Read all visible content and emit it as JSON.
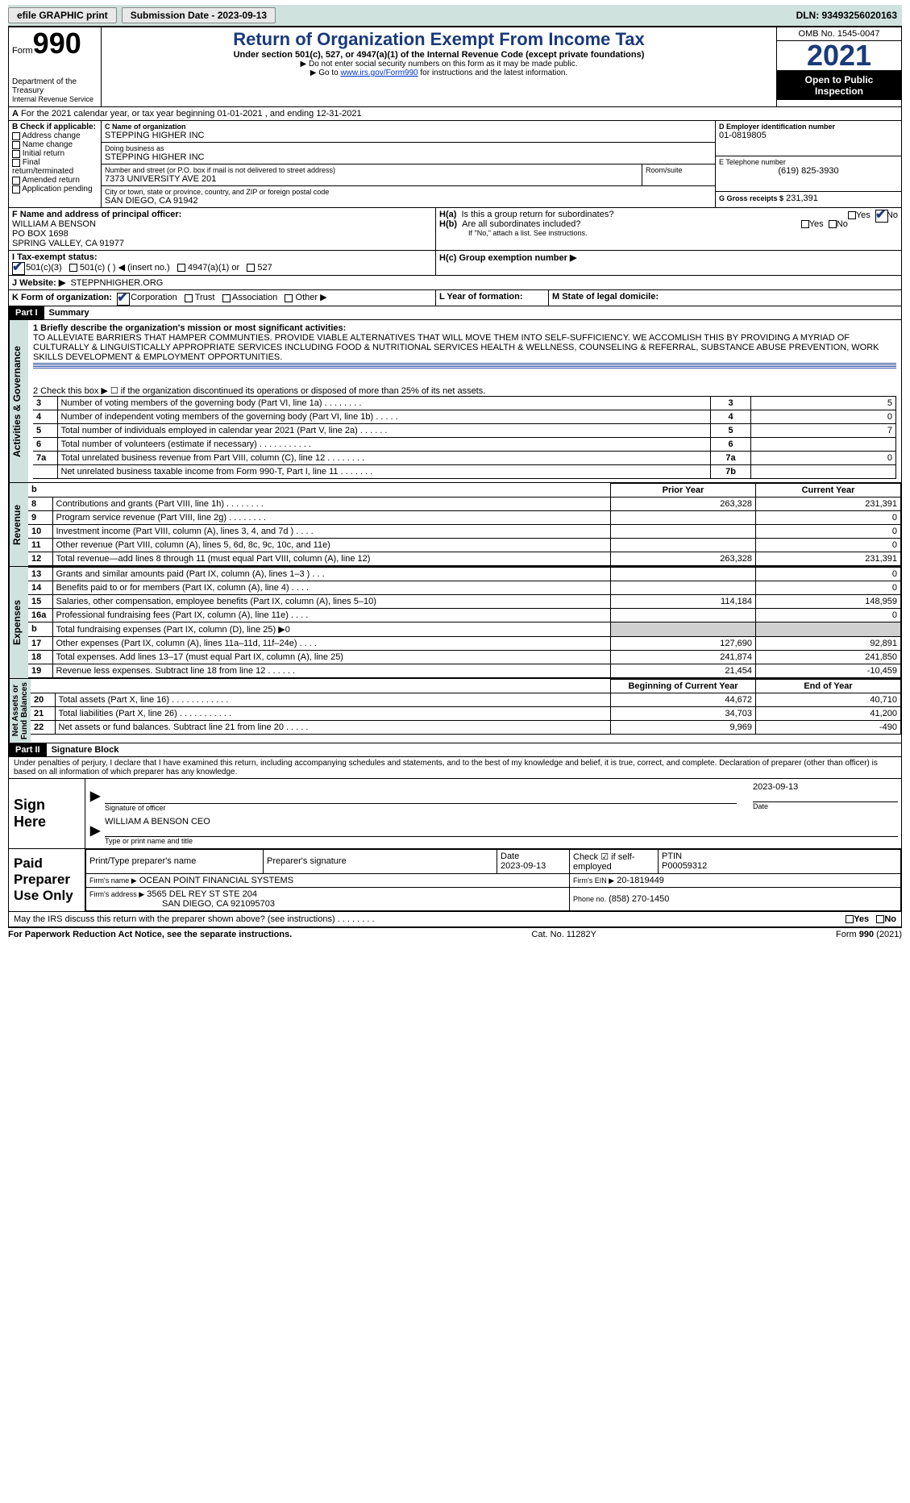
{
  "toolbar": {
    "efile": "efile GRAPHIC print",
    "submission": "Submission Date - 2023-09-13",
    "dln": "DLN: 93493256020163"
  },
  "header": {
    "form": "Form",
    "formnum": "990",
    "dept": "Department of the Treasury",
    "irs": "Internal Revenue Service",
    "title": "Return of Organization Exempt From Income Tax",
    "sub": "Under section 501(c), 527, or 4947(a)(1) of the Internal Revenue Code (except private foundations)",
    "nossn": "▶ Do not enter social security numbers on this form as it may be made public.",
    "goto_pre": "▶ Go to ",
    "goto_link": "www.irs.gov/Form990",
    "goto_post": " for instructions and the latest information.",
    "omb": "OMB No. 1545-0047",
    "year": "2021",
    "otp": "Open to Public Inspection"
  },
  "lineA": "For the 2021 calendar year, or tax year beginning 01-01-2021     , and ending 12-31-2021",
  "boxB": {
    "title": "B Check if applicable:",
    "addr": "Address change",
    "name": "Name change",
    "init": "Initial return",
    "final": "Final return/terminated",
    "amend": "Amended return",
    "app": "Application pending"
  },
  "boxC": {
    "label": "C Name of organization",
    "name": "STEPPING HIGHER INC",
    "dba_label": "Doing business as",
    "dba": "STEPPING HIGHER INC",
    "street_label": "Number and street (or P.O. box if mail is not delivered to street address)",
    "street": "7373 UNIVERSITY AVE 201",
    "room_label": "Room/suite",
    "city_label": "City or town, state or province, country, and ZIP or foreign postal code",
    "city": "SAN DIEGO, CA   91942"
  },
  "boxD": {
    "label": "D Employer identification number",
    "val": "01-0819805"
  },
  "boxE": {
    "label": "E Telephone number",
    "val": "(619) 825-3930"
  },
  "boxG": {
    "label": "G Gross receipts $",
    "val": "231,391"
  },
  "boxF": {
    "label": "F   Name and address of principal officer:",
    "name": "WILLIAM A BENSON",
    "addr1": "PO BOX 1698",
    "addr2": "SPRING VALLEY, CA   91977"
  },
  "boxH": {
    "a": "H(a)   Is this a group return for subordinates?",
    "b": "H(b)   Are all subordinates included?",
    "bnote": "If \"No,\" attach a list. See instructions.",
    "c": "H(c)   Group exemption number ▶"
  },
  "boxI": {
    "label": "I     Tax-exempt status:",
    "c3": "501(c)(3)",
    "c": "501(c) (  ) ◀ (insert no.)",
    "a1": "4947(a)(1) or",
    "s527": "527"
  },
  "boxJ": {
    "label": "J    Website: ▶",
    "val": "STEPPNHIGHER.ORG"
  },
  "boxK": {
    "label": "K Form of organization:",
    "corp": "Corporation",
    "trust": "Trust",
    "assoc": "Association",
    "other": "Other ▶"
  },
  "boxL": "L Year of formation:",
  "boxM": "M State of legal domicile:",
  "part1": {
    "bar": "Part I",
    "title": "Summary"
  },
  "summary": {
    "l1": "1 Briefly describe the organization's mission or most significant activities:",
    "mission": "TO ALLEVIATE BARRIERS THAT HAMPER COMMUNTIES. PROVIDE VIABLE ALTERNATIVES THAT WILL MOVE THEM INTO SELF-SUFFICIENCY. WE ACCOMLISH THIS BY PROVIDING A MYRIAD OF CULTURALLY & LINGUISTICALLY APPROPRIATE SERVICES INCLUDING FOOD & NUTRITIONAL SERVICES HEALTH & WELLNESS, COUNSELING & REFERRAL, SUBSTANCE ABUSE PREVENTION, WORK SKILLS DEVELOPMENT & EMPLOYMENT OPPORTUNITIES.",
    "l2": "2    Check this box ▶ ☐   if the organization discontinued its operations or disposed of more than 25% of its net assets.",
    "rows": [
      {
        "n": "3",
        "t": "Number of voting members of the governing body (Part VI, line 1a)   .    .    .    .    .    .    .    .",
        "k": "3",
        "v": "5"
      },
      {
        "n": "4",
        "t": "Number of independent voting members of the governing body (Part VI, line 1b)    .    .    .    .    .",
        "k": "4",
        "v": "0"
      },
      {
        "n": "5",
        "t": "Total number of individuals employed in calendar year 2021 (Part V, line 2a)    .    .    .    .    .    .",
        "k": "5",
        "v": "7"
      },
      {
        "n": "6",
        "t": "Total number of volunteers (estimate if necessary)   .    .    .    .    .    .    .    .    .    .    .",
        "k": "6",
        "v": ""
      },
      {
        "n": "7a",
        "t": "Total unrelated business revenue from Part VIII, column (C), line 12   .    .    .    .    .    .    .    .",
        "k": "7a",
        "v": "0"
      },
      {
        "n": "",
        "t": "Net unrelated business taxable income from Form 990-T, Part I, line 11   .    .    .    .    .    .    .",
        "k": "7b",
        "v": ""
      }
    ]
  },
  "revenue": {
    "hdr_prior": "Prior Year",
    "hdr_curr": "Current Year",
    "rows": [
      {
        "n": "8",
        "t": "Contributions and grants (Part VIII, line 1h)   .    .    .    .    .    .    .    .",
        "p": "263,328",
        "c": "231,391"
      },
      {
        "n": "9",
        "t": "Program service revenue (Part VIII, line 2g)   .    .    .    .    .    .    .    .",
        "p": "",
        "c": "0"
      },
      {
        "n": "10",
        "t": "Investment income (Part VIII, column (A), lines 3, 4, and 7d )   .    .    .    .",
        "p": "",
        "c": "0"
      },
      {
        "n": "11",
        "t": "Other revenue (Part VIII, column (A), lines 5, 6d, 8c, 9c, 10c, and 11e)",
        "p": "",
        "c": "0"
      },
      {
        "n": "12",
        "t": "Total revenue—add lines 8 through 11 (must equal Part VIII, column (A), line 12)",
        "p": "263,328",
        "c": "231,391"
      }
    ]
  },
  "expenses": {
    "rows": [
      {
        "n": "13",
        "t": "Grants and similar amounts paid (Part IX, column (A), lines 1–3 )  .    .    .",
        "p": "",
        "c": "0"
      },
      {
        "n": "14",
        "t": "Benefits paid to or for members (Part IX, column (A), line 4)  .    .    .    .",
        "p": "",
        "c": "0"
      },
      {
        "n": "15",
        "t": "Salaries, other compensation, employee benefits (Part IX, column (A), lines 5–10)",
        "p": "114,184",
        "c": "148,959"
      },
      {
        "n": "16a",
        "t": "Professional fundraising fees (Part IX, column (A), line 11e)   .    .    .    .",
        "p": "",
        "c": "0"
      },
      {
        "n": "b",
        "t": "Total fundraising expenses (Part IX, column (D), line 25) ▶0",
        "p": "",
        "c": "",
        "shade": true
      },
      {
        "n": "17",
        "t": "Other expenses (Part IX, column (A), lines 11a–11d, 11f–24e)   .    .    .    .",
        "p": "127,690",
        "c": "92,891"
      },
      {
        "n": "18",
        "t": "Total expenses. Add lines 13–17 (must equal Part IX, column (A), line 25)",
        "p": "241,874",
        "c": "241,850"
      },
      {
        "n": "19",
        "t": "Revenue less expenses. Subtract line 18 from line 12  .    .    .    .    .    .",
        "p": "21,454",
        "c": "-10,459"
      }
    ]
  },
  "netassets": {
    "hdr_beg": "Beginning of Current Year",
    "hdr_end": "End of Year",
    "rows": [
      {
        "n": "20",
        "t": "Total assets (Part X, line 16)  .    .    .    .    .    .    .    .    .    .    .    .",
        "p": "44,672",
        "c": "40,710"
      },
      {
        "n": "21",
        "t": "Total liabilities (Part X, line 26)  .    .    .    .    .    .    .    .    .    .    .",
        "p": "34,703",
        "c": "41,200"
      },
      {
        "n": "22",
        "t": "Net assets or fund balances. Subtract line 21 from line 20  .    .    .    .    .",
        "p": "9,969",
        "c": "-490"
      }
    ]
  },
  "part2": {
    "bar": "Part II",
    "title": "Signature Block"
  },
  "penal": "Under penalties of perjury, I declare that I have examined this return, including accompanying schedules and statements, and to the best of my knowledge and belief, it is true, correct, and complete. Declaration of preparer (other than officer) is based on all information of which preparer has any knowledge.",
  "sign": {
    "here": "Sign Here",
    "sig": "Signature of officer",
    "date": "Date",
    "dateval": "2023-09-13",
    "name": "WILLIAM A BENSON  CEO",
    "nametitle": "Type or print name and title"
  },
  "paid": {
    "label": "Paid Preparer Use Only",
    "h1": "Print/Type preparer's name",
    "h2": "Preparer's signature",
    "h3": "Date",
    "h3v": "2023-09-13",
    "h4": "Check ☑ if self-employed",
    "h5": "PTIN",
    "h5v": "P00059312",
    "firmname_l": "Firm's name    ▶",
    "firmname": "OCEAN POINT FINANCIAL SYSTEMS",
    "firmein_l": "Firm's EIN ▶",
    "firmein": "20-1819449",
    "firmaddr_l": "Firm's address ▶",
    "firmaddr1": "3565 DEL REY ST STE 204",
    "firmaddr2": "SAN DIEGO, CA   921095703",
    "phone_l": "Phone no.",
    "phone": "(858) 270-1450"
  },
  "discuss": "May the IRS discuss this return with the preparer shown above? (see instructions)   .    .    .    .    .    .    .    .",
  "yes": "Yes",
  "no": "No",
  "footer": {
    "l": "For Paperwork Reduction Act Notice, see the separate instructions.",
    "m": "Cat. No. 11282Y",
    "r": "Form 990 (2021)"
  }
}
